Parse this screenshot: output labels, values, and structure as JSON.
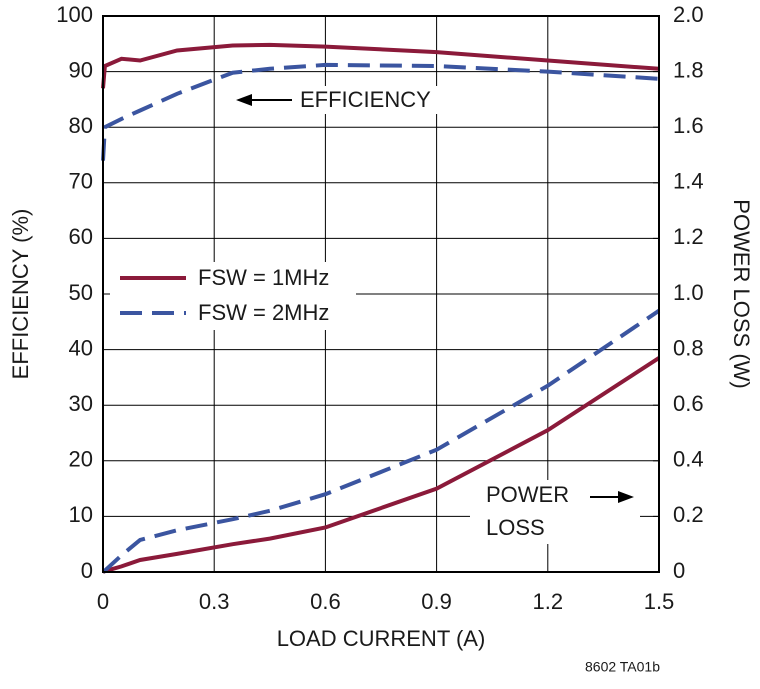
{
  "chart_data": {
    "type": "line",
    "x_label": "LOAD CURRENT (A)",
    "y_label": "EFFICIENCY (%)",
    "y2_label": "POWER LOSS (W)",
    "x": [
      0,
      0.005,
      0.05,
      0.1,
      0.2,
      0.35,
      0.45,
      0.6,
      0.9,
      1.2,
      1.5
    ],
    "series": [
      {
        "name": "FSW = 1MHz",
        "color": "#8b1a3a",
        "line_style": "solid",
        "values": [
          87,
          91,
          92.3,
          92,
          93.8,
          94.7,
          94.8,
          94.5,
          93.5,
          92,
          90.5
        ]
      },
      {
        "name": "FSW = 2MHz",
        "color": "#3b55a0",
        "line_style": "dashed",
        "values": [
          74,
          80,
          81.5,
          83,
          86,
          89.8,
          90.5,
          91.2,
          91,
          90,
          88.7
        ]
      },
      {
        "color": "#8b1a3a",
        "line_style": "solid",
        "axis": "y2",
        "values": [
          0,
          0.003,
          0.02,
          0.043,
          0.065,
          0.1,
          0.12,
          0.16,
          0.3,
          0.51,
          0.77
        ]
      },
      {
        "color": "#3b55a0",
        "line_style": "dashed",
        "axis": "y2",
        "values": [
          0,
          0.005,
          0.06,
          0.115,
          0.15,
          0.19,
          0.22,
          0.28,
          0.44,
          0.67,
          0.94
        ]
      }
    ],
    "xlim": [
      0,
      1.5
    ],
    "xticks": [
      0,
      0.3,
      0.6,
      0.9,
      1.2,
      1.5
    ],
    "ylim": [
      0,
      100
    ],
    "yticks": [
      0,
      10,
      20,
      30,
      40,
      50,
      60,
      70,
      80,
      90,
      100
    ],
    "y2lim": [
      0,
      2
    ],
    "y2ticks": [
      0,
      0.2,
      0.4,
      0.6,
      0.8,
      {
        "value": 1,
        "label": "1.0"
      },
      1.2,
      1.4,
      1.6,
      1.8,
      {
        "value": 2,
        "label": "2.0"
      }
    ],
    "grid": true,
    "annotations": [
      "EFFICIENCY",
      "POWER",
      "LOSS"
    ],
    "footnote": "8602 TA01b"
  }
}
